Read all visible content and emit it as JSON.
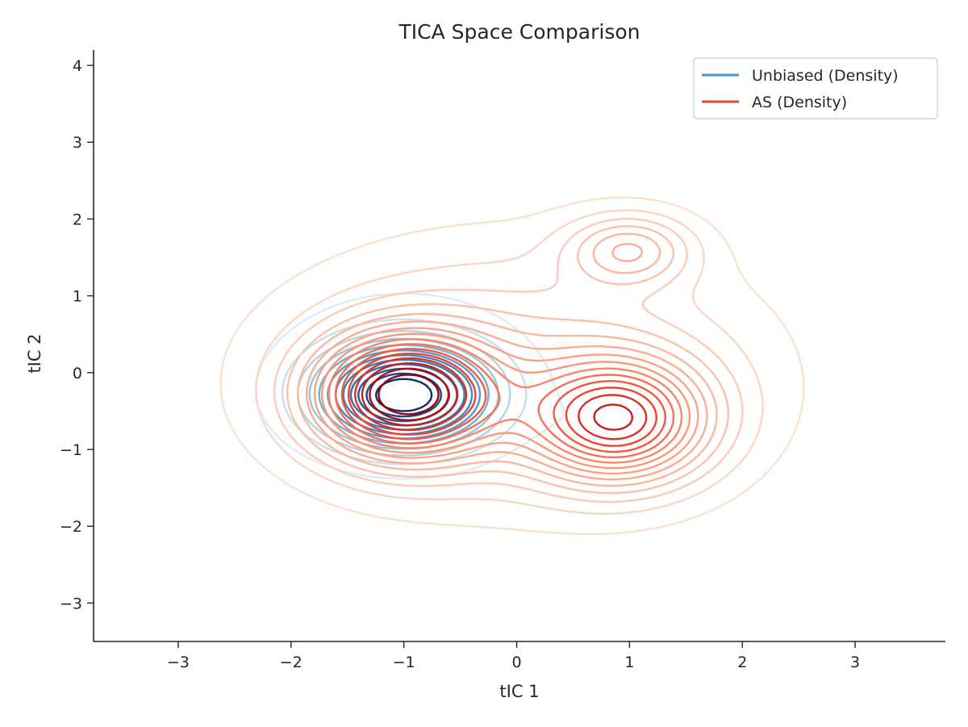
{
  "chart_data": {
    "type": "contour",
    "title": "TICA Space Comparison",
    "xlabel": "tIC 1",
    "ylabel": "tIC 2",
    "xlim": [
      -3.75,
      3.8
    ],
    "ylim": [
      -3.5,
      4.2
    ],
    "xticks": [
      -3,
      -2,
      -1,
      0,
      1,
      2,
      3
    ],
    "yticks": [
      -3,
      -2,
      -1,
      0,
      1,
      2,
      3,
      4
    ],
    "xtick_labels": [
      "−3",
      "−2",
      "−1",
      "0",
      "1",
      "2",
      "3"
    ],
    "ytick_labels": [
      "−3",
      "−2",
      "−1",
      "0",
      "1",
      "2",
      "3",
      "4"
    ],
    "grid": false,
    "legend_position": "top-right",
    "series": [
      {
        "name": "Unbiased (Density)",
        "legend_color": "#4a98c9",
        "colormap": [
          "#deebf7",
          "#9ecae1",
          "#4292c6",
          "#2171b5",
          "#08306b"
        ],
        "levels": 12,
        "components": [
          {
            "mx": -1.0,
            "my": -0.3,
            "sx": 0.5,
            "sy": 0.42,
            "w": 1.0
          },
          {
            "mx": -1.0,
            "my": 0.0,
            "sx": 0.95,
            "sy": 0.95,
            "w": 0.14
          },
          {
            "mx": 1.0,
            "my": 1.55,
            "sx": 0.6,
            "sy": 0.4,
            "w": 0.06
          },
          {
            "mx": 0.75,
            "my": -0.65,
            "sx": 0.35,
            "sy": 0.3,
            "w": 0.05
          }
        ]
      },
      {
        "name": "AS (Density)",
        "legend_color": "#e34a33",
        "colormap": [
          "#fee0d2",
          "#fcbba1",
          "#fc9272",
          "#ef3b2c",
          "#99000d"
        ],
        "levels": 16,
        "components": [
          {
            "mx": -1.0,
            "my": -0.3,
            "sx": 0.55,
            "sy": 0.55,
            "w": 1.0
          },
          {
            "mx": 0.9,
            "my": -0.62,
            "sx": 0.55,
            "sy": 0.55,
            "w": 0.8
          },
          {
            "mx": 1.0,
            "my": 1.6,
            "sx": 0.38,
            "sy": 0.32,
            "w": 0.35
          },
          {
            "mx": 0.0,
            "my": 0.0,
            "sx": 1.45,
            "sy": 1.15,
            "w": 0.3
          }
        ]
      }
    ]
  }
}
